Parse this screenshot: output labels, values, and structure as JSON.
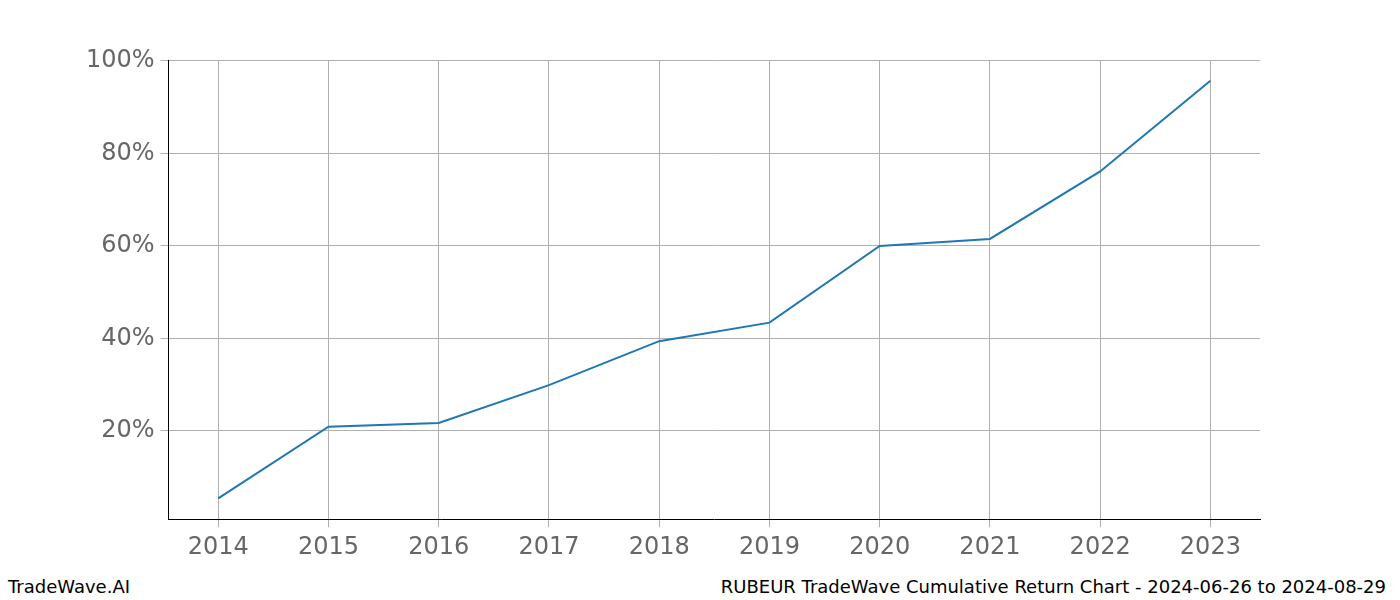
{
  "chart_data": {
    "type": "line",
    "x": [
      2014,
      2015,
      2016,
      2017,
      2018,
      2019,
      2020,
      2021,
      2022,
      2023
    ],
    "values": [
      5.4,
      20.9,
      21.7,
      29.9,
      39.4,
      43.4,
      60.0,
      61.5,
      76.1,
      95.7
    ],
    "color": "#1f77b4",
    "xlim": [
      2013.55,
      2023.45
    ],
    "xticks": [
      2014,
      2015,
      2016,
      2017,
      2018,
      2019,
      2020,
      2021,
      2022,
      2023
    ],
    "ylim": [
      0.9,
      100.2
    ],
    "yticks": [
      {
        "value": 20,
        "label": "20%"
      },
      {
        "value": 40,
        "label": "40%"
      },
      {
        "value": 60,
        "label": "60%"
      },
      {
        "value": 80,
        "label": "80%"
      },
      {
        "value": 100,
        "label": "100%"
      }
    ],
    "grid": true,
    "annotations": [
      "TradeWave.AI",
      "RUBEUR TradeWave Cumulative Return Chart - 2024-06-26 to 2024-08-29"
    ]
  }
}
